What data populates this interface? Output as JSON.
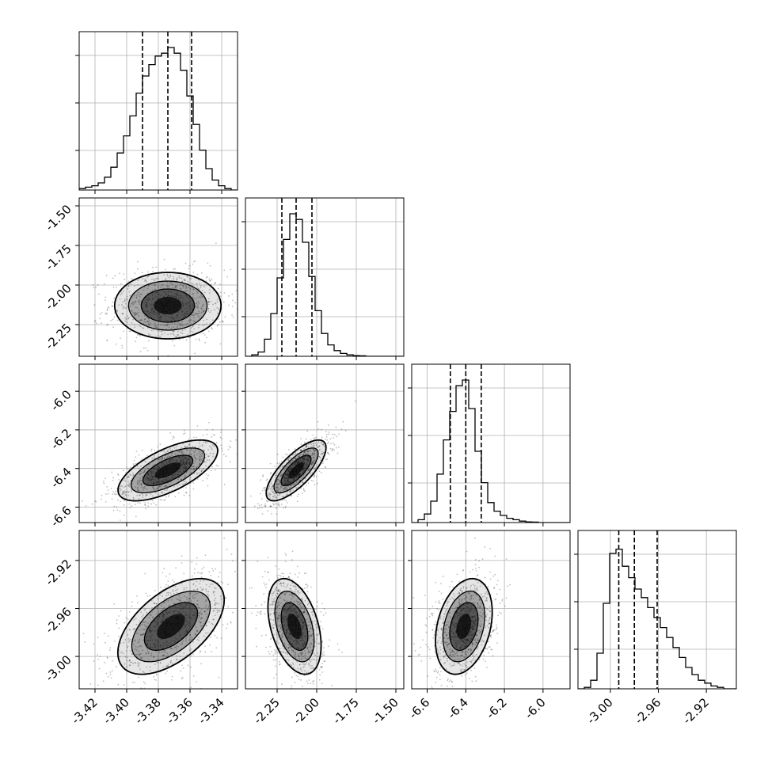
{
  "chart_data": {
    "type": "corner",
    "parameters": 4,
    "colors": {
      "line": "#000000",
      "grid": "#b0b0b0",
      "background": "#ffffff"
    },
    "grid": true,
    "ranges": [
      [
        -3.43,
        -3.33
      ],
      [
        -2.45,
        -1.45
      ],
      [
        -6.68,
        -5.86
      ],
      [
        -3.027,
        -2.895
      ]
    ],
    "x_ticks": [
      [
        "-3.42",
        "-3.40",
        "-3.38",
        "-3.36",
        "-3.34"
      ],
      [
        "-2.25",
        "-2.00",
        "-1.75",
        "-1.50"
      ],
      [
        "-6.6",
        "-6.4",
        "-6.2",
        "-6.0"
      ],
      [
        "-3.00",
        "-2.96",
        "-2.92"
      ]
    ],
    "y_ticks": [
      [],
      [
        "-1.50",
        "-1.75",
        "-2.00",
        "-2.25"
      ],
      [
        "-6.0",
        "-6.2",
        "-6.4",
        "-6.6"
      ],
      [
        "-2.92",
        "-2.96",
        "-3.00"
      ]
    ],
    "quantiles": [
      [
        -3.39,
        -3.374,
        -3.359
      ],
      [
        -2.22,
        -2.13,
        -2.03
      ],
      [
        -6.48,
        -6.4,
        -6.32
      ],
      [
        -2.993,
        -2.98,
        -2.961
      ]
    ],
    "histograms": [
      {
        "bin_start": -3.43,
        "bin_end": -3.33,
        "counts": [
          1,
          2,
          3,
          5,
          9,
          16,
          26,
          38,
          52,
          68,
          80,
          88,
          94,
          96,
          100,
          96,
          84,
          66,
          46,
          28,
          15,
          7,
          3,
          1,
          0
        ]
      },
      {
        "bin_start": -2.45,
        "bin_end": -1.45,
        "counts": [
          0,
          1,
          3,
          12,
          30,
          55,
          82,
          100,
          96,
          80,
          56,
          32,
          16,
          8,
          4,
          2,
          1,
          0.5,
          0.3,
          0,
          0,
          0,
          0,
          0,
          0
        ]
      },
      {
        "bin_start": -6.68,
        "bin_end": -5.86,
        "counts": [
          0,
          2,
          6,
          15,
          34,
          58,
          78,
          96,
          100,
          80,
          50,
          28,
          14,
          8,
          5,
          3,
          2,
          1,
          0.5,
          0.3,
          0,
          0,
          0,
          0,
          0
        ]
      },
      {
        "bin_start": -3.027,
        "bin_end": -2.895,
        "counts": [
          0,
          1,
          6,
          25,
          60,
          95,
          98,
          86,
          78,
          70,
          64,
          57,
          50,
          43,
          36,
          29,
          22,
          15,
          10,
          6,
          4,
          2,
          1,
          0,
          0
        ]
      }
    ],
    "densities_2d": [
      {
        "i": 1,
        "j": 0,
        "mean": [
          -3.374,
          -2.13
        ],
        "sd": [
          0.016,
          0.1
        ],
        "corr": 0.0
      },
      {
        "i": 2,
        "j": 0,
        "mean": [
          -3.374,
          -6.41
        ],
        "sd": [
          0.015,
          0.075
        ],
        "corr": 0.65
      },
      {
        "i": 2,
        "j": 1,
        "mean": [
          -2.13,
          -6.41
        ],
        "sd": [
          0.09,
          0.075
        ],
        "corr": 0.75
      },
      {
        "i": 3,
        "j": 0,
        "mean": [
          -3.372,
          -2.975
        ],
        "sd": [
          0.016,
          0.019
        ],
        "corr": 0.55
      },
      {
        "i": 3,
        "j": 1,
        "mean": [
          -2.14,
          -2.975
        ],
        "sd": [
          0.08,
          0.019
        ],
        "corr": -0.4
      },
      {
        "i": 3,
        "j": 2,
        "mean": [
          -6.41,
          -2.975
        ],
        "sd": [
          0.07,
          0.019
        ],
        "corr": 0.3
      }
    ]
  }
}
